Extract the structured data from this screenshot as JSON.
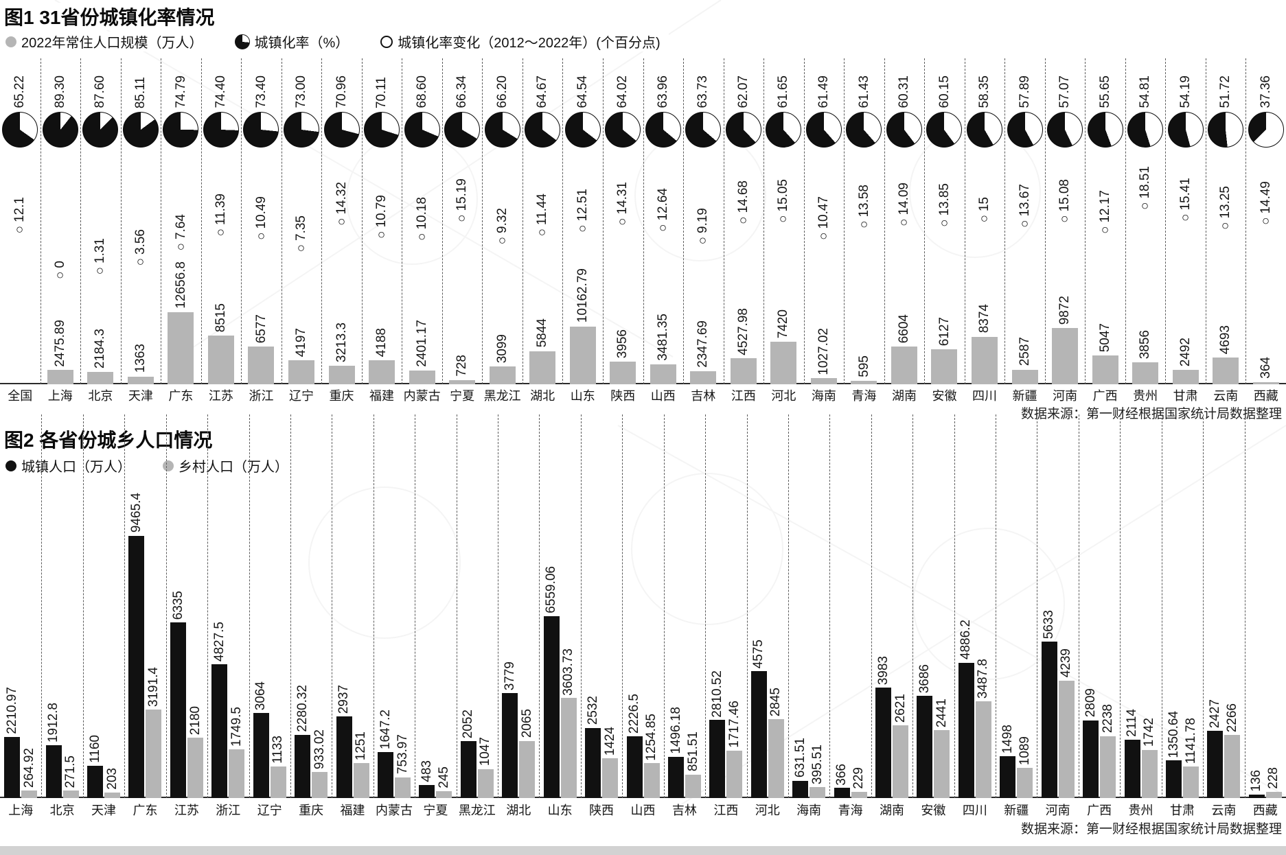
{
  "colors": {
    "bar_gray": "#b5b5b5",
    "bar_black": "#111111",
    "baseline": "#2b2b2b",
    "bottom_strip": "#d2d2d2"
  },
  "chart_data": [
    {
      "type": "bar",
      "title": "图1 31省份城镇化率情况",
      "legend": [
        "2022年常住人口规模（万人）",
        "城镇化率（%）",
        "城镇化率变化（2012～2022年）(个百分点)"
      ],
      "source": "数据来源：第一财经根据国家统计局数据整理",
      "categories": [
        "全国",
        "上海",
        "北京",
        "天津",
        "广东",
        "江苏",
        "浙江",
        "辽宁",
        "重庆",
        "福建",
        "内蒙古",
        "宁夏",
        "黑龙江",
        "湖北",
        "山东",
        "陕西",
        "山西",
        "吉林",
        "江西",
        "河北",
        "海南",
        "青海",
        "湖南",
        "安徽",
        "四川",
        "新疆",
        "河南",
        "广西",
        "贵州",
        "甘肃",
        "云南",
        "西藏"
      ],
      "series": [
        {
          "name": "2022年常住人口规模（万人）",
          "style": "gray-bar",
          "values": [
            "",
            "2475.89",
            "2184.3",
            "1363",
            "12656.8",
            "8515",
            "6577",
            "4197",
            "3213.3",
            "4188",
            "2401.17",
            "728",
            "3099",
            "5844",
            "10162.79",
            "3956",
            "3481.35",
            "2347.69",
            "4527.98",
            "7420",
            "1027.02",
            "595",
            "6604",
            "6127",
            "8374",
            "2587",
            "9872",
            "5047",
            "3856",
            "2492",
            "4693",
            "364"
          ]
        },
        {
          "name": "城镇化率（%）",
          "style": "pie",
          "values": [
            "65.22",
            "89.30",
            "87.60",
            "85.11",
            "74.79",
            "74.40",
            "73.40",
            "73.00",
            "70.96",
            "70.11",
            "68.60",
            "66.34",
            "66.20",
            "64.67",
            "64.54",
            "64.02",
            "63.96",
            "63.73",
            "62.07",
            "61.65",
            "61.49",
            "61.43",
            "60.31",
            "60.15",
            "58.35",
            "57.89",
            "57.07",
            "55.65",
            "54.81",
            "54.19",
            "51.72",
            "37.36"
          ]
        },
        {
          "name": "城镇化率变化（2012～2022年）(个百分点)",
          "style": "circle-marker",
          "values": [
            "12.1",
            "0",
            "1.31",
            "3.56",
            "7.64",
            "11.39",
            "10.49",
            "7.35",
            "14.32",
            "10.79",
            "10.18",
            "15.19",
            "9.32",
            "11.44",
            "12.51",
            "14.31",
            "12.64",
            "9.19",
            "14.68",
            "15.05",
            "10.47",
            "13.58",
            "14.09",
            "13.85",
            "15",
            "13.67",
            "15.08",
            "12.17",
            "18.51",
            "15.41",
            "13.25",
            "14.49"
          ]
        }
      ]
    },
    {
      "type": "bar",
      "title": "图2 各省份城乡人口情况",
      "legend": [
        "城镇人口（万人）",
        "乡村人口（万人）"
      ],
      "source": "数据来源：第一财经根据国家统计局数据整理",
      "categories": [
        "上海",
        "北京",
        "天津",
        "广东",
        "江苏",
        "浙江",
        "辽宁",
        "重庆",
        "福建",
        "内蒙古",
        "宁夏",
        "黑龙江",
        "湖北",
        "山东",
        "陕西",
        "山西",
        "吉林",
        "江西",
        "河北",
        "海南",
        "青海",
        "湖南",
        "安徽",
        "四川",
        "新疆",
        "河南",
        "广西",
        "贵州",
        "甘肃",
        "云南",
        "西藏"
      ],
      "series": [
        {
          "name": "城镇人口（万人）",
          "color": "#111111",
          "values": [
            "2210.97",
            "1912.8",
            "1160",
            "9465.4",
            "6335",
            "4827.5",
            "3064",
            "2280.32",
            "2937",
            "1647.2",
            "483",
            "2052",
            "3779",
            "6559.06",
            "2532",
            "2226.5",
            "1496.18",
            "2810.52",
            "4575",
            "631.51",
            "366",
            "3983",
            "3686",
            "4886.2",
            "1498",
            "5633",
            "2809",
            "2114",
            "1350.64",
            "2427",
            "136"
          ]
        },
        {
          "name": "乡村人口（万人）",
          "color": "#b5b5b5",
          "values": [
            "264.92",
            "271.5",
            "203",
            "3191.4",
            "2180",
            "1749.5",
            "1133",
            "933.02",
            "1251",
            "753.97",
            "245",
            "1047",
            "2065",
            "3603.73",
            "1424",
            "1254.85",
            "851.51",
            "1717.46",
            "2845",
            "395.51",
            "229",
            "2621",
            "2441",
            "3487.8",
            "1089",
            "4239",
            "2238",
            "1742",
            "1141.78",
            "2266",
            "228"
          ]
        }
      ]
    }
  ]
}
